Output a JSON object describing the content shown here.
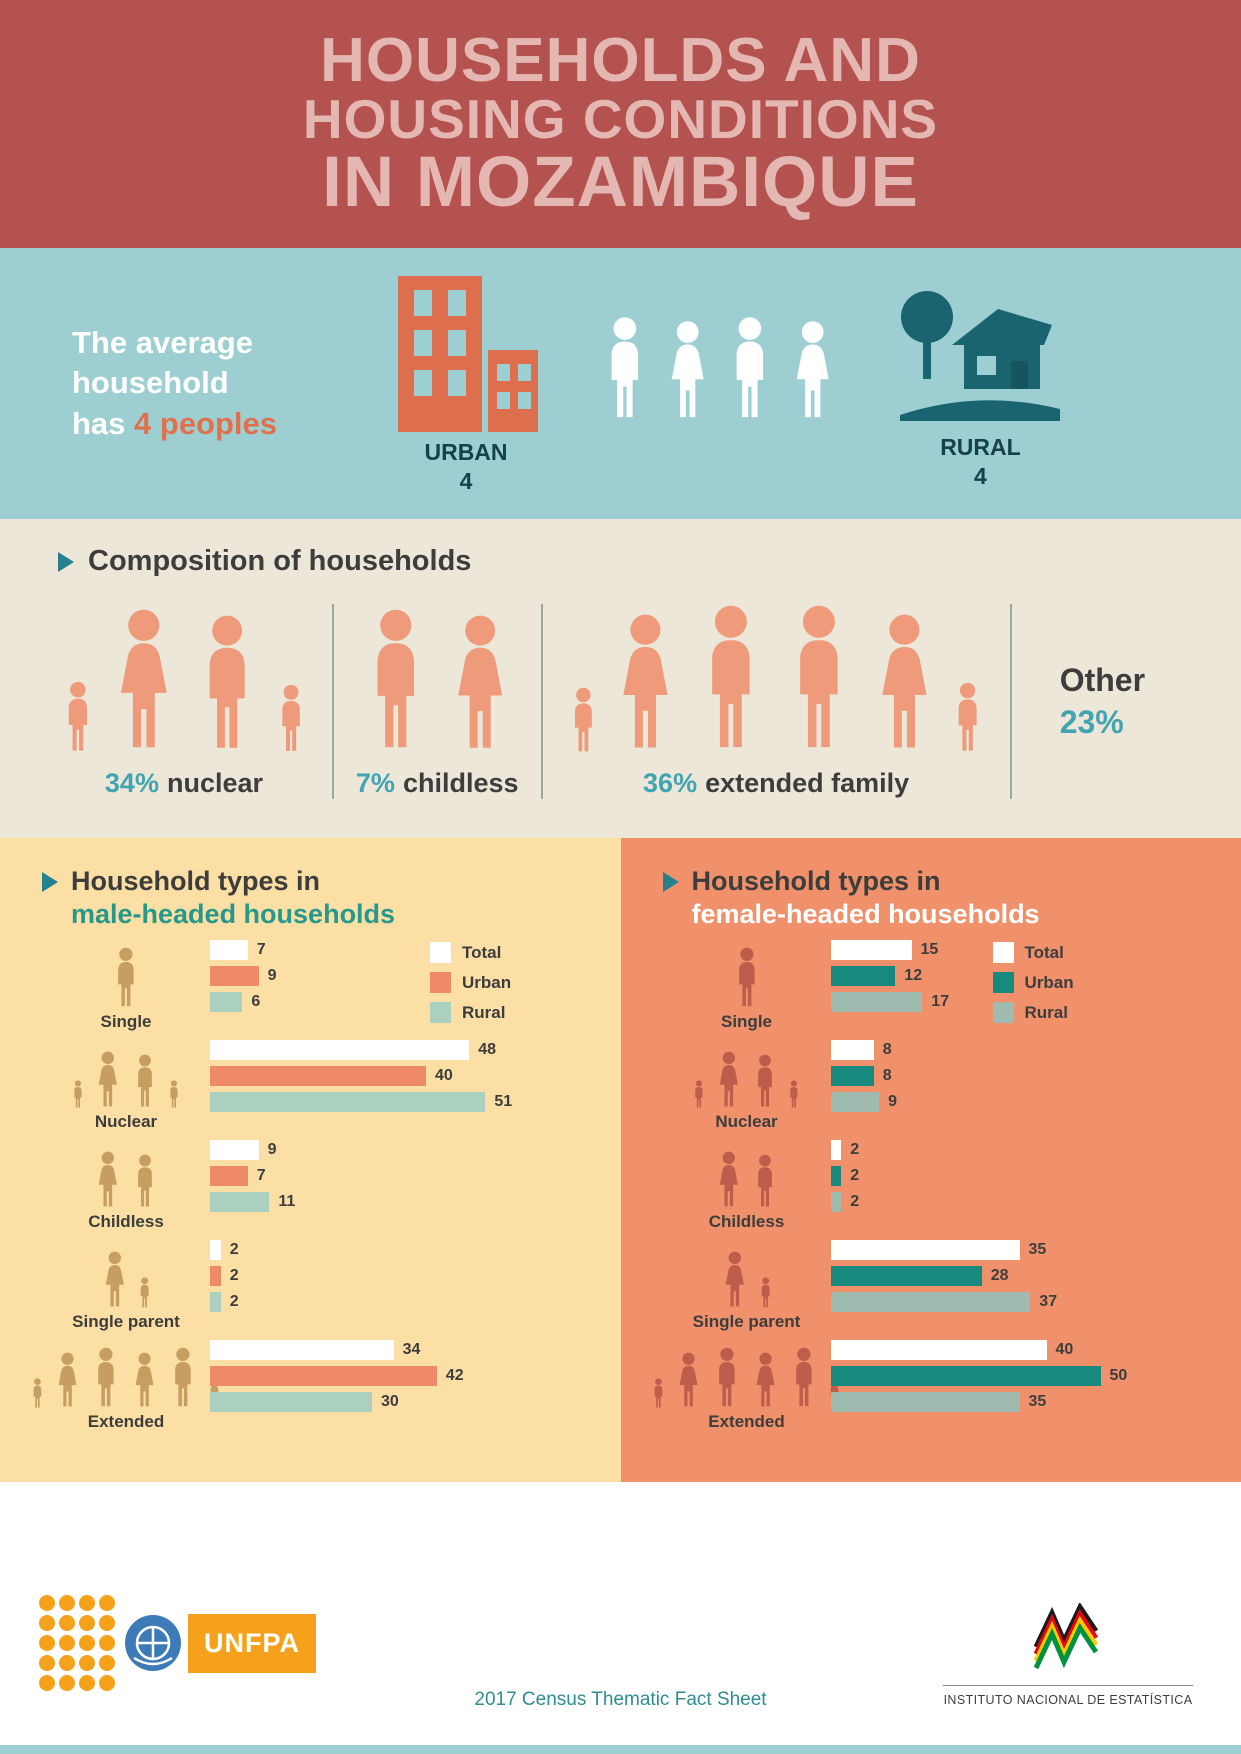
{
  "header": {
    "title_lines": [
      "HOUSEHOLDS AND",
      "HOUSING CONDITIONS",
      "IN MOZAMBIQUE"
    ]
  },
  "average_section": {
    "lead_lines": [
      "The average",
      "household"
    ],
    "lead_last_prefix": "has ",
    "lead_highlight": "4 peoples",
    "urban": {
      "label": "URBAN",
      "value": "4"
    },
    "rural": {
      "label": "RURAL",
      "value": "4"
    }
  },
  "composition": {
    "title": "Composition of households",
    "groups": [
      {
        "pct": "34%",
        "label": "nuclear",
        "icon": "nuclear-family-icon"
      },
      {
        "pct": "7%",
        "label": "childless",
        "icon": "childless-couple-icon"
      },
      {
        "pct": "36%",
        "label": "extended family",
        "icon": "extended-family-icon"
      }
    ],
    "other": {
      "label": "Other",
      "value": "23%"
    }
  },
  "male_chart": {
    "title_line1": "Household types in",
    "title_line2": "male-headed households",
    "legend": [
      "Total",
      "Urban",
      "Rural"
    ],
    "colors": {
      "total": "#ffffff",
      "urban": "#ef8a68",
      "rural": "#abd0c0"
    },
    "rows": [
      {
        "label": "Single",
        "values": [
          7,
          9,
          6
        ]
      },
      {
        "label": "Nuclear",
        "values": [
          48,
          40,
          51
        ]
      },
      {
        "label": "Childless",
        "values": [
          9,
          7,
          11
        ]
      },
      {
        "label": "Single parent",
        "values": [
          2,
          2,
          2
        ]
      },
      {
        "label": "Extended",
        "values": [
          34,
          42,
          30
        ]
      }
    ]
  },
  "female_chart": {
    "title_line1": "Household types in",
    "title_line2": "female-headed households",
    "legend": [
      "Total",
      "Urban",
      "Rural"
    ],
    "colors": {
      "total": "#ffffff",
      "urban": "#17897f",
      "rural": "#9fbaae"
    },
    "rows": [
      {
        "label": "Single",
        "values": [
          15,
          12,
          17
        ]
      },
      {
        "label": "Nuclear",
        "values": [
          8,
          8,
          9
        ]
      },
      {
        "label": "Childless",
        "values": [
          2,
          2,
          2
        ]
      },
      {
        "label": "Single parent",
        "values": [
          35,
          28,
          37
        ]
      },
      {
        "label": "Extended",
        "values": [
          40,
          50,
          35
        ]
      }
    ]
  },
  "footer": {
    "unfpa_text": "UNFPA",
    "caption": "2017 Census Thematic Fact Sheet",
    "ine_text": "INSTITUTO NACIONAL DE ESTATÍSTICA"
  },
  "chart_data": [
    {
      "type": "pie",
      "title": "Composition of households",
      "categories": [
        "nuclear",
        "childless",
        "extended family",
        "Other"
      ],
      "values": [
        34,
        7,
        36,
        23
      ],
      "unit": "%"
    },
    {
      "type": "bar",
      "orientation": "horizontal",
      "title": "Household types in male-headed households",
      "categories": [
        "Single",
        "Nuclear",
        "Childless",
        "Single parent",
        "Extended"
      ],
      "series": [
        {
          "name": "Total",
          "values": [
            7,
            48,
            9,
            2,
            34
          ]
        },
        {
          "name": "Urban",
          "values": [
            9,
            40,
            7,
            2,
            42
          ]
        },
        {
          "name": "Rural",
          "values": [
            6,
            51,
            11,
            2,
            30
          ]
        }
      ],
      "legend_position": "top-right",
      "xlim": [
        0,
        55
      ]
    },
    {
      "type": "bar",
      "orientation": "horizontal",
      "title": "Household types in female-headed households",
      "categories": [
        "Single",
        "Nuclear",
        "Childless",
        "Single parent",
        "Extended"
      ],
      "series": [
        {
          "name": "Total",
          "values": [
            15,
            8,
            2,
            35,
            40
          ]
        },
        {
          "name": "Urban",
          "values": [
            12,
            8,
            2,
            28,
            50
          ]
        },
        {
          "name": "Rural",
          "values": [
            17,
            9,
            2,
            37,
            35
          ]
        }
      ],
      "legend_position": "top-right",
      "xlim": [
        0,
        55
      ]
    }
  ]
}
